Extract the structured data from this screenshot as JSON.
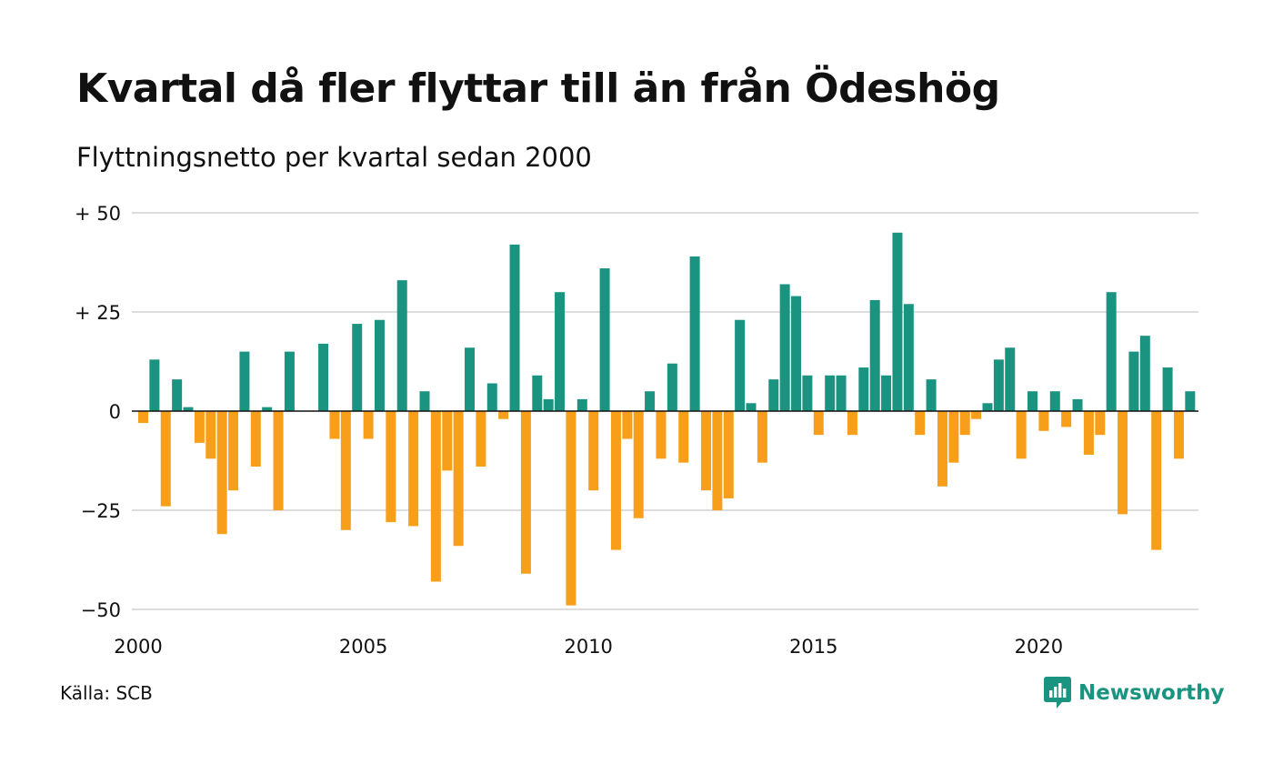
{
  "header": {
    "title": "Kvartal då fler flyttar till än från Ödeshög",
    "subtitle": "Flyttningsnetto per kvartal sedan 2000"
  },
  "footer": {
    "source": "Källa: SCB",
    "brand": "Newsworthy"
  },
  "colors": {
    "positive": "#1a9480",
    "negative": "#f79f1a",
    "grid": "#dddddd",
    "zero_line": "#111111",
    "text": "#111111"
  },
  "icons": {
    "brand_logo": "newsworthy-chat-bars-icon"
  },
  "chart_data": {
    "type": "bar",
    "x_start": "2000Q1",
    "x_unit": "quarter",
    "xlim": [
      2000,
      2023.75
    ],
    "ylim": [
      -50,
      50
    ],
    "y_ticks": [
      50,
      25,
      0,
      -25,
      -50
    ],
    "y_tick_labels": [
      "+ 50",
      "+ 25",
      "0",
      "−25",
      "−50"
    ],
    "x_ticks": [
      2000,
      2005,
      2010,
      2015,
      2020
    ],
    "x_tick_labels": [
      "2000",
      "2005",
      "2010",
      "2015",
      "2020"
    ],
    "grid": true,
    "legend": "none",
    "values": [
      -3,
      13,
      -24,
      8,
      1,
      -8,
      -12,
      -31,
      -20,
      15,
      -14,
      1,
      -25,
      15,
      0,
      0,
      17,
      -7,
      -30,
      22,
      -7,
      23,
      -28,
      33,
      -29,
      5,
      -43,
      -15,
      -34,
      16,
      -14,
      7,
      -2,
      42,
      -41,
      9,
      3,
      30,
      -49,
      3,
      -20,
      36,
      -35,
      -7,
      -27,
      5,
      -12,
      12,
      -13,
      39,
      -20,
      -25,
      -22,
      23,
      2,
      -13,
      8,
      32,
      29,
      9,
      -6,
      9,
      9,
      -6,
      11,
      28,
      9,
      45,
      27,
      -6,
      8,
      -19,
      -13,
      -6,
      -2,
      2,
      13,
      16,
      -12,
      5,
      -5,
      5,
      -4,
      3,
      -11,
      -6,
      30,
      -26,
      15,
      19,
      -35,
      11,
      -12,
      5
    ]
  }
}
